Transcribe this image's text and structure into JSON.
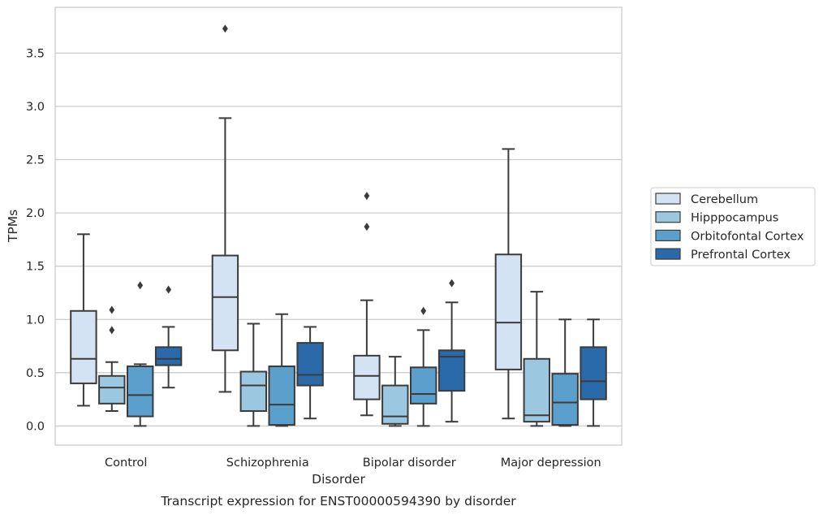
{
  "chart_data": {
    "type": "box",
    "xlabel": "Disorder",
    "ylabel": "TPMs",
    "caption": "Transcript expression for ENST00000594390 by disorder",
    "ylim": [
      -0.18,
      3.93
    ],
    "yticks": [
      "0.0",
      "0.5",
      "1.0",
      "1.5",
      "2.0",
      "2.5",
      "3.0",
      "3.5"
    ],
    "grid": true,
    "legend_position": "right",
    "categories": [
      "Control",
      "Schizophrenia",
      "Bipolar disorder",
      "Major depression"
    ],
    "series": [
      {
        "name": "Cerebellum",
        "color": "#d4e3f3",
        "boxes": [
          {
            "whisker_low": 0.19,
            "q1": 0.4,
            "median": 0.63,
            "q3": 1.08,
            "whisker_high": 1.8,
            "outliers": []
          },
          {
            "whisker_low": 0.32,
            "q1": 0.71,
            "median": 1.21,
            "q3": 1.6,
            "whisker_high": 2.89,
            "outliers": [
              3.73
            ]
          },
          {
            "whisker_low": 0.1,
            "q1": 0.25,
            "median": 0.47,
            "q3": 0.66,
            "whisker_high": 1.18,
            "outliers": [
              1.87,
              2.16
            ]
          },
          {
            "whisker_low": 0.07,
            "q1": 0.53,
            "median": 0.97,
            "q3": 1.61,
            "whisker_high": 2.6,
            "outliers": []
          }
        ]
      },
      {
        "name": "Hipppocampus",
        "color": "#9cc7e0",
        "boxes": [
          {
            "whisker_low": 0.14,
            "q1": 0.21,
            "median": 0.36,
            "q3": 0.47,
            "whisker_high": 0.6,
            "outliers": [
              0.9,
              1.09
            ]
          },
          {
            "whisker_low": 0.0,
            "q1": 0.14,
            "median": 0.38,
            "q3": 0.51,
            "whisker_high": 0.96,
            "outliers": []
          },
          {
            "whisker_low": 0.0,
            "q1": 0.02,
            "median": 0.09,
            "q3": 0.38,
            "whisker_high": 0.65,
            "outliers": []
          },
          {
            "whisker_low": 0.0,
            "q1": 0.04,
            "median": 0.1,
            "q3": 0.63,
            "whisker_high": 1.26,
            "outliers": []
          }
        ]
      },
      {
        "name": "Orbitofontal Cortex",
        "color": "#5b9fcc",
        "boxes": [
          {
            "whisker_low": 0.0,
            "q1": 0.09,
            "median": 0.29,
            "q3": 0.56,
            "whisker_high": 0.58,
            "outliers": [
              1.32
            ]
          },
          {
            "whisker_low": 0.0,
            "q1": 0.01,
            "median": 0.2,
            "q3": 0.56,
            "whisker_high": 1.05,
            "outliers": []
          },
          {
            "whisker_low": 0.0,
            "q1": 0.21,
            "median": 0.3,
            "q3": 0.55,
            "whisker_high": 0.9,
            "outliers": [
              1.08
            ]
          },
          {
            "whisker_low": 0.0,
            "q1": 0.01,
            "median": 0.22,
            "q3": 0.49,
            "whisker_high": 1.0,
            "outliers": []
          }
        ]
      },
      {
        "name": "Prefrontal Cortex",
        "color": "#2a6aaa",
        "boxes": [
          {
            "whisker_low": 0.36,
            "q1": 0.57,
            "median": 0.63,
            "q3": 0.74,
            "whisker_high": 0.93,
            "outliers": [
              1.28
            ]
          },
          {
            "whisker_low": 0.07,
            "q1": 0.38,
            "median": 0.48,
            "q3": 0.78,
            "whisker_high": 0.93,
            "outliers": []
          },
          {
            "whisker_low": 0.04,
            "q1": 0.33,
            "median": 0.65,
            "q3": 0.71,
            "whisker_high": 1.16,
            "outliers": [
              1.34
            ]
          },
          {
            "whisker_low": 0.0,
            "q1": 0.25,
            "median": 0.42,
            "q3": 0.74,
            "whisker_high": 1.0,
            "outliers": []
          }
        ]
      }
    ]
  }
}
